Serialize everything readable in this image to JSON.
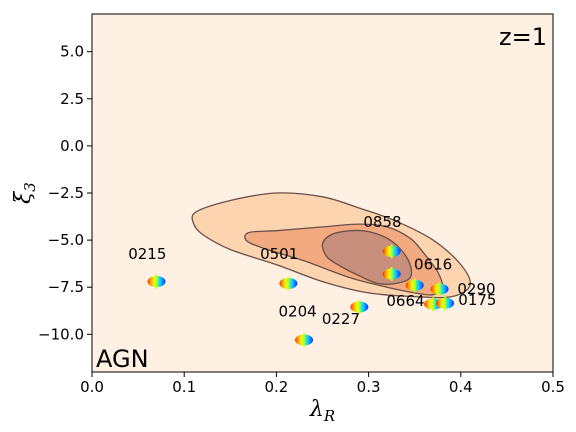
{
  "chart_data": {
    "type": "scatter",
    "title": "",
    "xlabel": "λ",
    "xlabel_sub": "R",
    "ylabel": "ξ",
    "ylabel_sub": "3",
    "xlim": [
      0.0,
      0.5
    ],
    "ylim": [
      -12.0,
      7.0
    ],
    "xticks": [
      {
        "value": 0.0,
        "label": "0.0"
      },
      {
        "value": 0.1,
        "label": "0.1"
      },
      {
        "value": 0.2,
        "label": "0.2"
      },
      {
        "value": 0.3,
        "label": "0.3"
      },
      {
        "value": 0.4,
        "label": "0.4"
      },
      {
        "value": 0.5,
        "label": "0.5"
      }
    ],
    "yticks": [
      {
        "value": 5.0,
        "label": "5.0"
      },
      {
        "value": 2.5,
        "label": "2.5"
      },
      {
        "value": 0.0,
        "label": "0.0"
      },
      {
        "value": -2.5,
        "label": "−2.5"
      },
      {
        "value": -5.0,
        "label": "−5.0"
      },
      {
        "value": -7.5,
        "label": "−7.5"
      },
      {
        "value": -10.0,
        "label": "−10.0"
      }
    ],
    "grid": false,
    "annotations": {
      "top_right": "z=1",
      "bottom_left": "AGN"
    },
    "colors": {
      "background": "#fff0e4",
      "contour_outer": "#fdd4b0",
      "contour_mid": "#f3aa80",
      "contour_inner": "#c88f7c",
      "contour_line": "#6a5048"
    },
    "contours": [
      {
        "level": "outer",
        "points": [
          [
            0.113,
            -3.5
          ],
          [
            0.15,
            -2.9
          ],
          [
            0.2,
            -2.5
          ],
          [
            0.25,
            -2.7
          ],
          [
            0.29,
            -3.3
          ],
          [
            0.33,
            -4.0
          ],
          [
            0.37,
            -5.0
          ],
          [
            0.4,
            -6.3
          ],
          [
            0.41,
            -7.4
          ],
          [
            0.39,
            -8.0
          ],
          [
            0.35,
            -8.0
          ],
          [
            0.3,
            -7.8
          ],
          [
            0.25,
            -7.2
          ],
          [
            0.2,
            -6.3
          ],
          [
            0.15,
            -5.5
          ],
          [
            0.12,
            -4.7
          ],
          [
            0.11,
            -4.1
          ]
        ]
      },
      {
        "level": "mid",
        "points": [
          [
            0.17,
            -4.6
          ],
          [
            0.2,
            -4.5
          ],
          [
            0.25,
            -4.3
          ],
          [
            0.29,
            -4.15
          ],
          [
            0.32,
            -4.3
          ],
          [
            0.345,
            -4.9
          ],
          [
            0.36,
            -5.7
          ],
          [
            0.375,
            -6.7
          ],
          [
            0.38,
            -7.5
          ],
          [
            0.37,
            -7.9
          ],
          [
            0.35,
            -7.8
          ],
          [
            0.32,
            -7.5
          ],
          [
            0.28,
            -7.0
          ],
          [
            0.23,
            -6.1
          ],
          [
            0.19,
            -5.5
          ],
          [
            0.168,
            -5.05
          ]
        ]
      },
      {
        "level": "inner",
        "points": [
          [
            0.25,
            -5.2
          ],
          [
            0.26,
            -4.7
          ],
          [
            0.28,
            -4.5
          ],
          [
            0.3,
            -4.55
          ],
          [
            0.32,
            -4.9
          ],
          [
            0.335,
            -5.5
          ],
          [
            0.345,
            -6.3
          ],
          [
            0.345,
            -7.0
          ],
          [
            0.33,
            -7.3
          ],
          [
            0.31,
            -7.3
          ],
          [
            0.29,
            -6.9
          ],
          [
            0.27,
            -6.4
          ],
          [
            0.255,
            -5.9
          ]
        ]
      }
    ],
    "points": [
      {
        "name": "0215",
        "x": 0.07,
        "y": -7.2,
        "label_dx": -0.01,
        "label_dy": 1.2
      },
      {
        "name": "0501",
        "x": 0.213,
        "y": -7.3,
        "label_dx": -0.01,
        "label_dy": 1.3
      },
      {
        "name": "0858",
        "x": 0.325,
        "y": -5.6,
        "label_dx": -0.01,
        "label_dy": 1.3
      },
      {
        "name": "0616",
        "x": 0.35,
        "y": -7.4,
        "label_dx": 0.02,
        "label_dy": 0.85
      },
      {
        "name": "0664",
        "x": 0.37,
        "y": -8.4,
        "label_dx": -0.03,
        "label_dy": -0.1
      },
      {
        "name": "0290",
        "x": 0.377,
        "y": -7.6,
        "label_dx": 0.04,
        "label_dy": -0.25
      },
      {
        "name": "0175",
        "x": 0.383,
        "y": -8.35,
        "label_dx": 0.035,
        "label_dy": -0.1
      },
      {
        "name": "0204",
        "x": 0.23,
        "y": -10.3,
        "label_dx": -0.007,
        "label_dy": 1.25
      },
      {
        "name": "0227",
        "x": 0.29,
        "y": -8.55,
        "label_dx": -0.02,
        "label_dy": -0.9
      },
      {
        "name": "",
        "x": 0.325,
        "y": -6.8,
        "label_dx": 0,
        "label_dy": 0
      }
    ]
  }
}
